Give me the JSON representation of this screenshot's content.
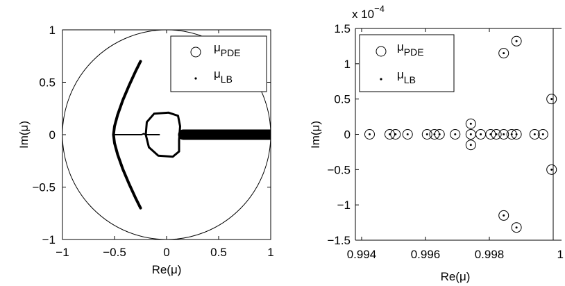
{
  "chart_data": [
    {
      "type": "scatter",
      "xlabel": "Re(μ)",
      "ylabel": "Im(μ)",
      "xlim": [
        -1,
        1
      ],
      "ylim": [
        -1,
        1
      ],
      "xticks": [
        -1,
        -0.5,
        0,
        0.5,
        1
      ],
      "yticks": [
        -1,
        -0.5,
        0,
        0.5,
        1
      ],
      "xtick_labels": [
        "−1",
        "−0.5",
        "0",
        "0.5",
        "1"
      ],
      "ytick_labels": [
        "−1",
        "−0.5",
        "0",
        "0.5",
        "1"
      ],
      "unit_circle": true,
      "legend_position": "top-right",
      "legend": [
        {
          "marker": "circle",
          "base": "μ",
          "sub": "PDE"
        },
        {
          "marker": "dot",
          "base": "μ",
          "sub": "LB"
        }
      ],
      "series": [
        {
          "name": "μ_LB",
          "marker": "dot",
          "curves": [
            {
              "label": "left-arc",
              "points": [
                [
                  -0.25,
                  0.7
                ],
                [
                  -0.3,
                  0.6
                ],
                [
                  -0.36,
                  0.47
                ],
                [
                  -0.42,
                  0.33
                ],
                [
                  -0.47,
                  0.19
                ],
                [
                  -0.5,
                  0.08
                ],
                [
                  -0.51,
                  0.0
                ],
                [
                  -0.5,
                  -0.08
                ],
                [
                  -0.47,
                  -0.19
                ],
                [
                  -0.42,
                  -0.33
                ],
                [
                  -0.36,
                  -0.47
                ],
                [
                  -0.3,
                  -0.6
                ],
                [
                  -0.25,
                  -0.7
                ]
              ]
            },
            {
              "label": "inner-line",
              "points": [
                [
                  -0.5,
                  0.0
                ],
                [
                  -0.38,
                  0.0
                ],
                [
                  -0.28,
                  0.0
                ],
                [
                  -0.24,
                  0.0
                ],
                [
                  -0.22,
                  0.01
                ],
                [
                  -0.2,
                  0.0
                ],
                [
                  -0.18,
                  0.0
                ],
                [
                  -0.07,
                  0.0
                ]
              ]
            },
            {
              "label": "inner-loop",
              "points": [
                [
                  -0.2,
                  0.0
                ],
                [
                  -0.19,
                  0.12
                ],
                [
                  -0.12,
                  0.2
                ],
                [
                  0.02,
                  0.21
                ],
                [
                  0.11,
                  0.18
                ],
                [
                  0.13,
                  0.08
                ],
                [
                  0.12,
                  -0.05
                ],
                [
                  0.12,
                  -0.16
                ],
                [
                  0.06,
                  -0.21
                ],
                [
                  -0.08,
                  -0.2
                ],
                [
                  -0.17,
                  -0.12
                ],
                [
                  -0.2,
                  0.0
                ]
              ]
            },
            {
              "label": "real-axis-band",
              "points": [
                [
                  0.16,
                  0.0
                ],
                [
                  1.0,
                  0.0
                ]
              ]
            }
          ]
        }
      ]
    },
    {
      "type": "scatter",
      "xlabel": "Re(μ)",
      "ylabel": "Im(μ)",
      "xlim": [
        0.994,
        1.0
      ],
      "ylim": [
        -1.5,
        1.5
      ],
      "y_scale_label": {
        "prefix": "x 10",
        "exponent": "−4"
      },
      "xticks": [
        0.994,
        0.996,
        0.998,
        1.0
      ],
      "yticks": [
        -1.5,
        -1,
        -0.5,
        0,
        0.5,
        1,
        1.5
      ],
      "xtick_labels": [
        "0.994",
        "0.996",
        "0.998",
        "1"
      ],
      "ytick_labels": [
        "−1.5",
        "−1",
        "−0.5",
        "0",
        "0.5",
        "1",
        "1.5"
      ],
      "unit_circle": true,
      "legend_position": "top-left",
      "legend": [
        {
          "marker": "circle",
          "base": "μ",
          "sub": "PDE"
        },
        {
          "marker": "dot",
          "base": "μ",
          "sub": "LB"
        }
      ],
      "series": [
        {
          "name": "μ_PDE / μ_LB",
          "marker": "circle-dot",
          "x": [
            0.99425,
            0.99488,
            0.99506,
            0.99544,
            0.99605,
            0.99628,
            0.99644,
            0.99693,
            0.99742,
            0.99742,
            0.99742,
            0.99773,
            0.99804,
            0.99822,
            0.99845,
            0.99845,
            0.99845,
            0.9987,
            0.99885,
            0.99885,
            0.99885,
            0.99942,
            0.99968,
            0.99995,
            0.99995
          ],
          "y": [
            0,
            0,
            0,
            0,
            0,
            0,
            0,
            0,
            0.15,
            -0.15,
            0,
            0,
            0,
            0,
            1.15,
            -1.15,
            0,
            0,
            1.32,
            -1.32,
            0,
            0,
            0,
            0.5,
            -0.5
          ]
        }
      ]
    }
  ]
}
